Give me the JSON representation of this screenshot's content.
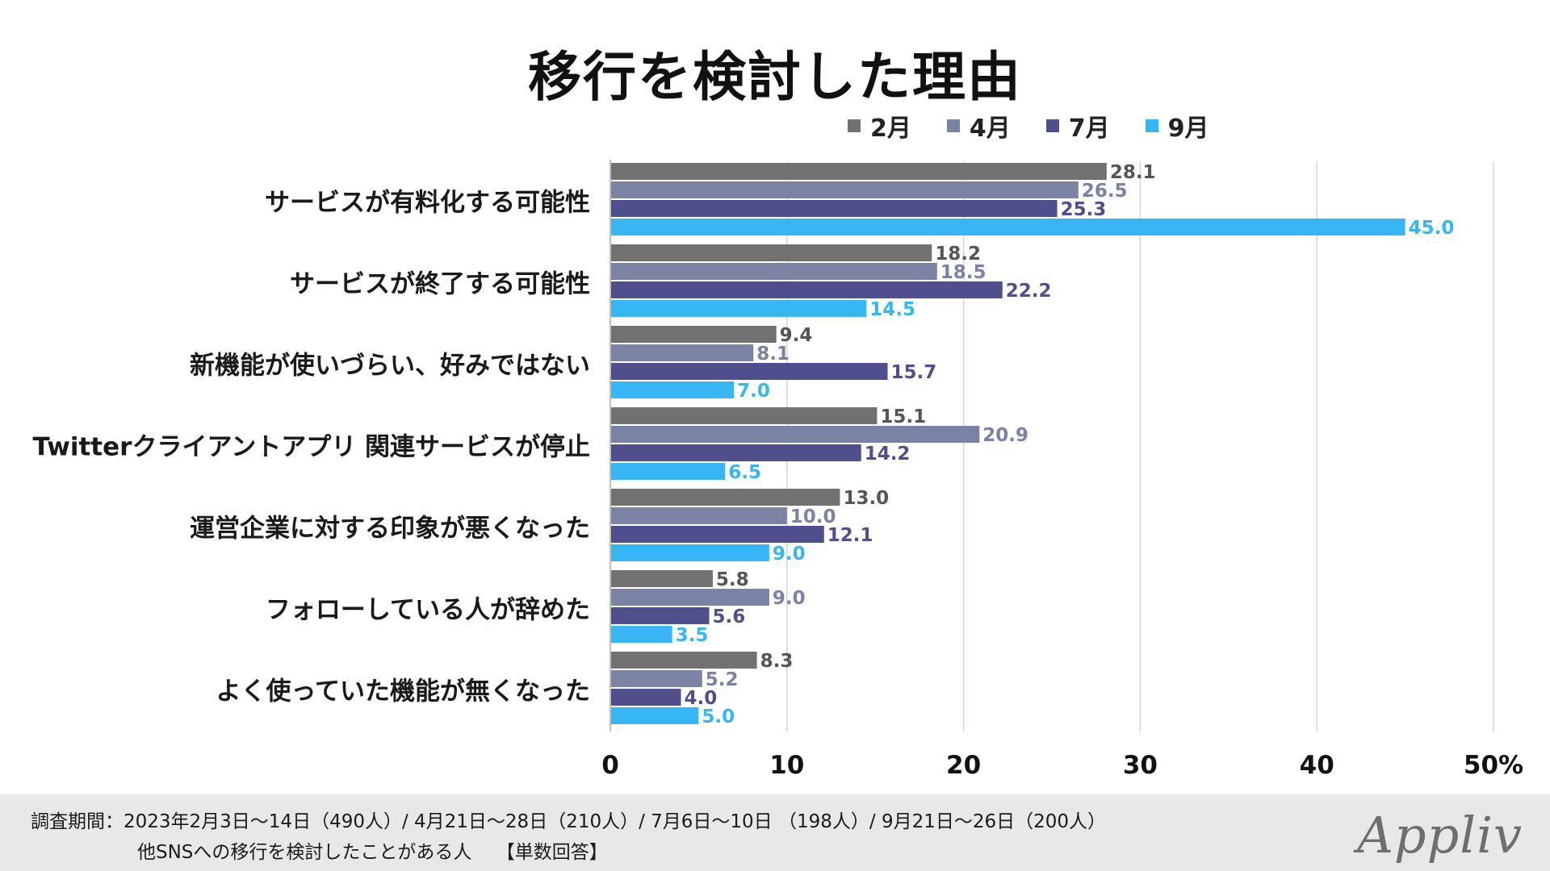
{
  "chart_data": {
    "type": "bar",
    "orientation": "horizontal",
    "title": "移行を検討した理由",
    "categories": [
      "サービスが有料化する可能性",
      "サービスが終了する可能性",
      "新機能が使いづらい、好みではない",
      "Twitterクライアントアプリ 関連サービスが停止",
      "運営企業に対する印象が悪くなった",
      "フォローしている人が辞めた",
      "よく使っていた機能が無くなった"
    ],
    "series": [
      {
        "name": "2月",
        "color": "#717171",
        "label_color": "#555555",
        "values": [
          28.1,
          18.2,
          9.4,
          15.1,
          13.0,
          5.8,
          8.3
        ]
      },
      {
        "name": "4月",
        "color": "#7b83a4",
        "label_color": "#7b83a4",
        "values": [
          26.5,
          18.5,
          8.1,
          20.9,
          10.0,
          9.0,
          5.2
        ]
      },
      {
        "name": "7月",
        "color": "#4e4f8c",
        "label_color": "#4e4f8c",
        "values": [
          25.3,
          22.2,
          15.7,
          14.2,
          12.1,
          5.6,
          4.0
        ]
      },
      {
        "name": "9月",
        "color": "#36b6f4",
        "label_color": "#36b6f4",
        "values": [
          45.0,
          14.5,
          7.0,
          6.5,
          9.0,
          3.5,
          5.0
        ]
      }
    ],
    "xlim": [
      0,
      50
    ],
    "xticks": [
      "0",
      "10",
      "20",
      "30",
      "40",
      "50%"
    ],
    "grid": true,
    "legend_position": "top-right"
  },
  "footer": {
    "line1": "調査期間：2023年2月3日〜14日（490人）/ 4月21日〜28日（210人）/ 7月6日〜10日 （198人）/ 9月21日〜26日（200人）",
    "line2": "他SNSへの移行を検討したことがある人　 【単数回答】",
    "brand": "Appliv"
  }
}
